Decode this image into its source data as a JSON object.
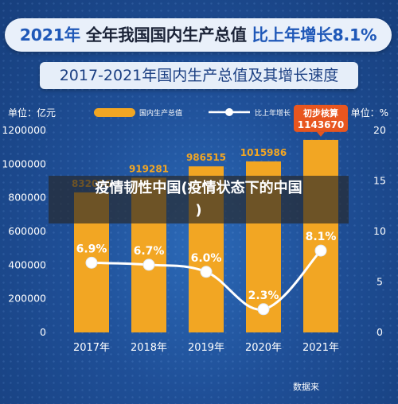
{
  "headline": {
    "year": "2021年",
    "middle": "全年我国国内生产总值",
    "growth": "比上年增长8.1%"
  },
  "subheadline": "2017-2021年国内生产总值及其增长速度",
  "watermark": {
    "line1": "疫情韧性中国(疫情状态下的中国",
    "line2": ")"
  },
  "source_label": "数据来",
  "chart_data": {
    "type": "bar",
    "categories": [
      "2017年",
      "2018年",
      "2019年",
      "2020年",
      "2021年"
    ],
    "left_axis_title": "单位：亿元",
    "right_axis_title": "单位：%",
    "left_ticks": [
      "0",
      "200000",
      "400000",
      "600000",
      "800000",
      "1000000",
      "1200000"
    ],
    "right_ticks": [
      "0",
      "5",
      "10",
      "15",
      "20"
    ],
    "ylim_left": [
      0,
      1200000
    ],
    "ylim_right": [
      0,
      20
    ],
    "bar_labels": [
      "832036",
      "919281",
      "986515",
      "1015986",
      "1143670"
    ],
    "line_labels": [
      "6.9%",
      "6.7%",
      "6.0%",
      "2.3%",
      "8.1%"
    ],
    "series": [
      {
        "name": "国内生产总值",
        "type": "bar",
        "axis": "left",
        "values": [
          832036,
          919281,
          986515,
          1015986,
          1143670
        ],
        "color": "#f2a623"
      },
      {
        "name": "比上年增长",
        "type": "line",
        "axis": "right",
        "values": [
          6.9,
          6.7,
          6.0,
          2.3,
          8.1
        ],
        "color": "#ffffff"
      }
    ],
    "callout": {
      "line1": "初步核算",
      "line2": "1143670",
      "color": "#e8561f"
    },
    "grid": false,
    "legend_position": "top-center"
  }
}
